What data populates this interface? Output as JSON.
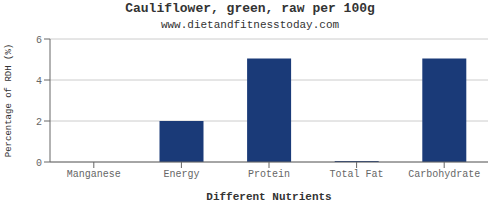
{
  "chart_data": {
    "type": "bar",
    "title": "Cauliflower, green, raw per 100g",
    "subtitle": "www.dietandfitnesstoday.com",
    "xlabel": "Different Nutrients",
    "ylabel": "Percentage of RDH (%)",
    "categories": [
      "Manganese",
      "Energy",
      "Protein",
      "Total Fat",
      "Carbohydrate"
    ],
    "values": [
      0.0,
      2.0,
      5.05,
      0.05,
      5.05
    ],
    "color": "#1a3a78",
    "ylim": [
      0,
      6
    ],
    "yticks": [
      0,
      2,
      4,
      6
    ],
    "grid": true
  }
}
